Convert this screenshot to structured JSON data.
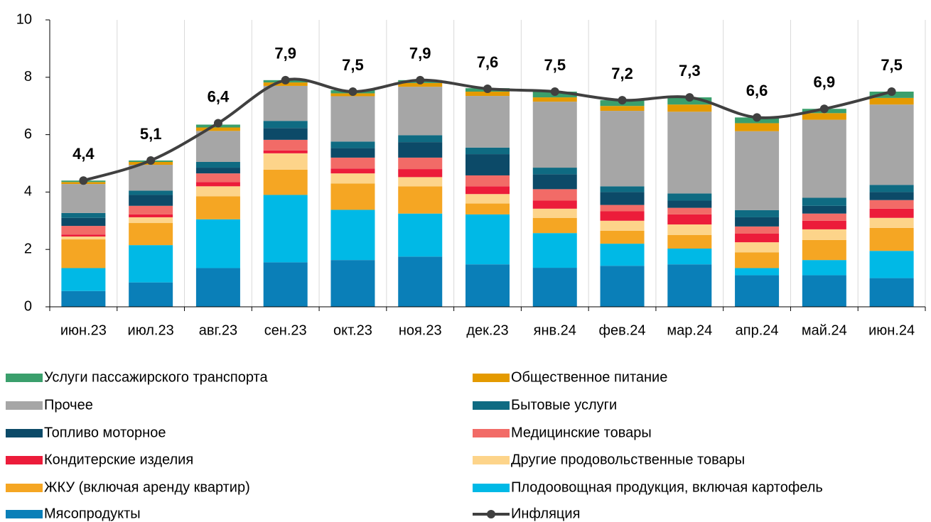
{
  "chart_data": {
    "type": "bar",
    "stacked": true,
    "categories": [
      "июн.23",
      "июл.23",
      "авг.23",
      "сен.23",
      "окт.23",
      "ноя.23",
      "дек.23",
      "янв.24",
      "фев.24",
      "мар.24",
      "апр.24",
      "май.24",
      "июн.24"
    ],
    "ylim": [
      0,
      10
    ],
    "yticks": [
      0,
      2,
      4,
      6,
      8,
      10
    ],
    "series": [
      {
        "name": "Мясопродукты",
        "color": "#0a7fb8",
        "values": [
          0.55,
          0.85,
          1.35,
          1.55,
          1.63,
          1.75,
          1.48,
          1.36,
          1.43,
          1.48,
          1.1,
          1.1,
          1.0
        ]
      },
      {
        "name": "Плодоовощная продукция, включая картофель",
        "color": "#00b9e6",
        "values": [
          0.8,
          1.3,
          1.7,
          2.35,
          1.75,
          1.5,
          1.74,
          1.21,
          0.77,
          0.55,
          0.25,
          0.53,
          0.95
        ]
      },
      {
        "name": "ЖКУ (включая аренду квартир)",
        "color": "#f5a623",
        "values": [
          1.0,
          0.77,
          0.8,
          0.88,
          0.92,
          0.95,
          0.38,
          0.53,
          0.45,
          0.47,
          0.55,
          0.7,
          0.8
        ]
      },
      {
        "name": "Другие продовольственные товары",
        "color": "#fdd48a",
        "values": [
          0.1,
          0.2,
          0.35,
          0.57,
          0.35,
          0.32,
          0.33,
          0.32,
          0.35,
          0.37,
          0.35,
          0.37,
          0.35
        ]
      },
      {
        "name": "Кондитерские изделия",
        "color": "#ec1c3a",
        "values": [
          0.07,
          0.1,
          0.15,
          0.1,
          0.17,
          0.28,
          0.27,
          0.28,
          0.33,
          0.35,
          0.3,
          0.3,
          0.32
        ]
      },
      {
        "name": "Медицинские товары",
        "color": "#f26b67",
        "values": [
          0.3,
          0.3,
          0.3,
          0.37,
          0.38,
          0.4,
          0.38,
          0.4,
          0.22,
          0.23,
          0.25,
          0.25,
          0.3
        ]
      },
      {
        "name": "Топливо моторное",
        "color": "#0c4a68",
        "values": [
          0.28,
          0.38,
          0.2,
          0.41,
          0.33,
          0.54,
          0.74,
          0.52,
          0.45,
          0.25,
          0.32,
          0.27,
          0.28
        ]
      },
      {
        "name": "Бытовые услуги",
        "color": "#0f6b82",
        "values": [
          0.17,
          0.15,
          0.2,
          0.25,
          0.23,
          0.24,
          0.23,
          0.23,
          0.2,
          0.25,
          0.25,
          0.28,
          0.25
        ]
      },
      {
        "name": "Прочее",
        "color": "#a6a6a6",
        "values": [
          1.01,
          0.9,
          1.08,
          1.22,
          1.58,
          1.69,
          1.8,
          2.3,
          2.63,
          2.85,
          2.75,
          2.72,
          2.8
        ]
      },
      {
        "name": "Общественное питание",
        "color": "#e49a00",
        "values": [
          0.07,
          0.1,
          0.12,
          0.12,
          0.1,
          0.13,
          0.15,
          0.15,
          0.17,
          0.25,
          0.28,
          0.23,
          0.23
        ]
      },
      {
        "name": "Услуги пассажирского транспорта",
        "color": "#3a9f6c",
        "values": [
          0.05,
          0.05,
          0.1,
          0.08,
          0.11,
          0.1,
          0.12,
          0.2,
          0.2,
          0.25,
          0.2,
          0.15,
          0.22
        ]
      }
    ],
    "line": {
      "name": "Инфляция",
      "color": "#404040",
      "values": [
        4.4,
        5.1,
        6.4,
        7.9,
        7.5,
        7.9,
        7.6,
        7.5,
        7.2,
        7.3,
        6.6,
        6.9,
        7.5
      ],
      "value_labels": [
        "4,4",
        "5,1",
        "6,4",
        "7,9",
        "7,5",
        "7,9",
        "7,6",
        "7,5",
        "7,2",
        "7,3",
        "6,6",
        "6,9",
        "7,5"
      ]
    }
  }
}
